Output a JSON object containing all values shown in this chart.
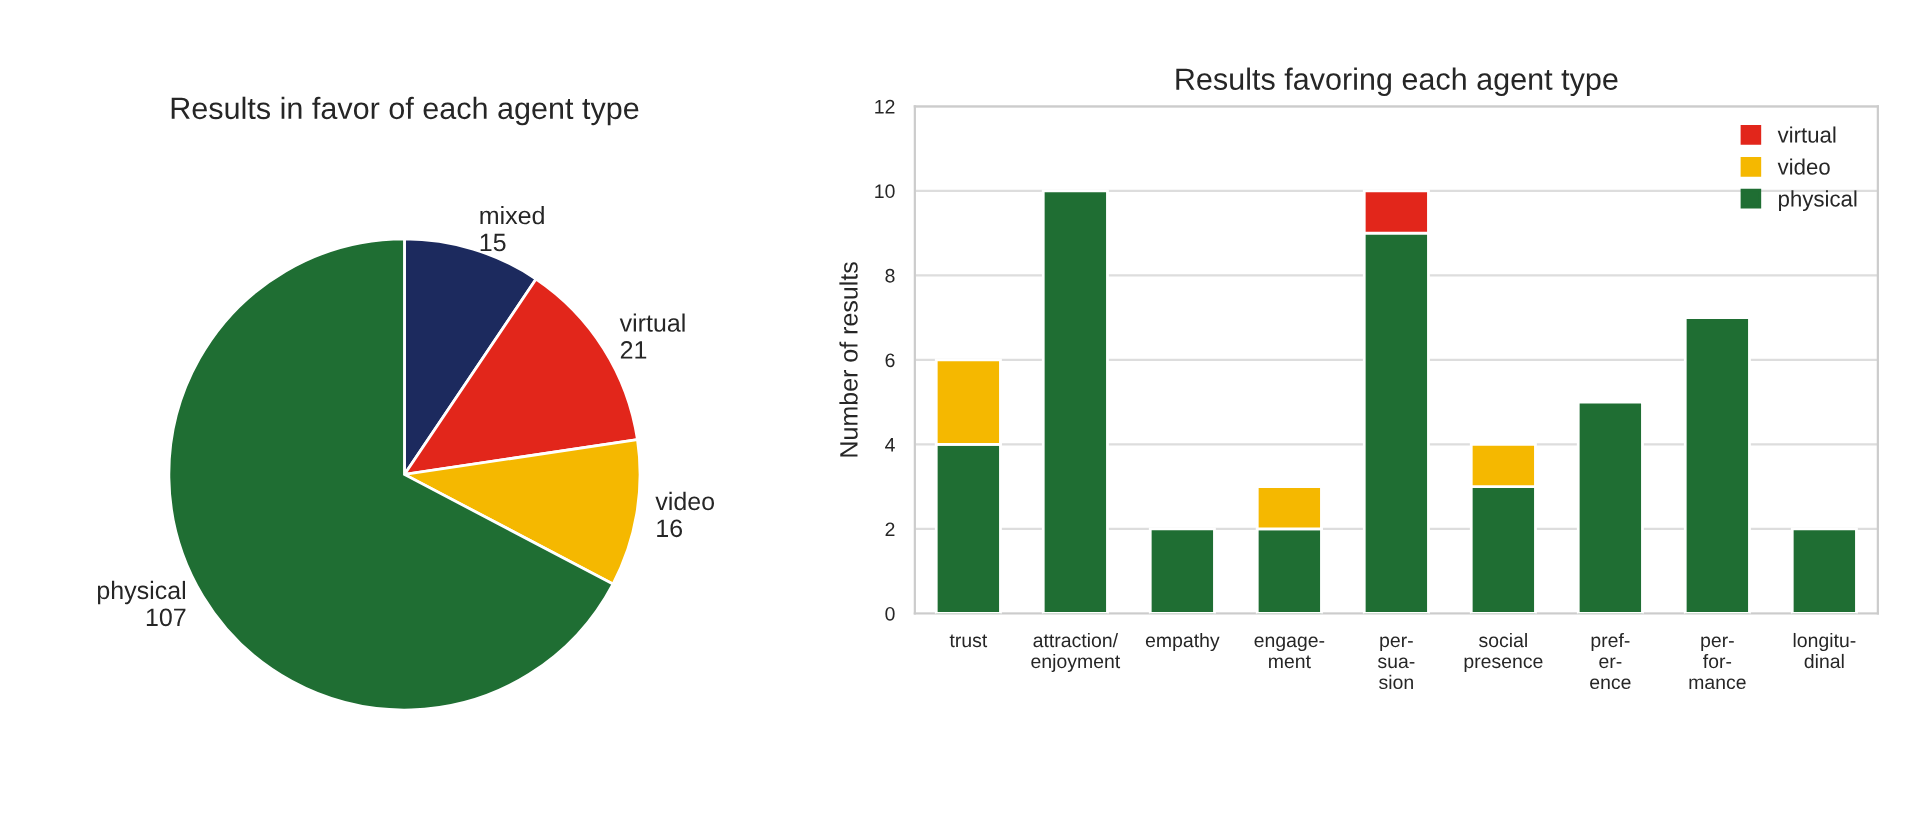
{
  "chart_data": [
    {
      "type": "pie",
      "title": "Results in favor of each agent type",
      "categories": [
        "mixed",
        "virtual",
        "video",
        "physical"
      ],
      "values": [
        15,
        21,
        16,
        107
      ],
      "colors": [
        "#1c2a5e",
        "#e2261b",
        "#f5b800",
        "#1f6e33"
      ],
      "data_labels": true
    },
    {
      "type": "bar",
      "title": "Results favoring each agent type",
      "ylabel": "Number of results",
      "categories": [
        "trust",
        "attraction/\nenjoyment",
        "empathy",
        "engage-\nment",
        "per-\nsua-\nsion",
        "social\npresence",
        "pref-\ner-\nence",
        "per-\nfor-\nmance",
        "longitu-\ndinal"
      ],
      "stacked": true,
      "series": [
        {
          "name": "physical",
          "color": "#1f6e33",
          "values": [
            4,
            10,
            2,
            2,
            9,
            3,
            5,
            7,
            2
          ]
        },
        {
          "name": "video",
          "color": "#f5b800",
          "values": [
            2,
            null,
            null,
            1,
            null,
            1,
            null,
            null,
            null
          ]
        },
        {
          "name": "virtual",
          "color": "#e2261b",
          "values": [
            null,
            null,
            null,
            null,
            1,
            null,
            null,
            null,
            null
          ]
        }
      ],
      "ylim": [
        0,
        12
      ],
      "yticks": [
        0,
        2,
        4,
        6,
        8,
        10,
        12
      ],
      "grid": "y",
      "legend": "top right"
    }
  ]
}
